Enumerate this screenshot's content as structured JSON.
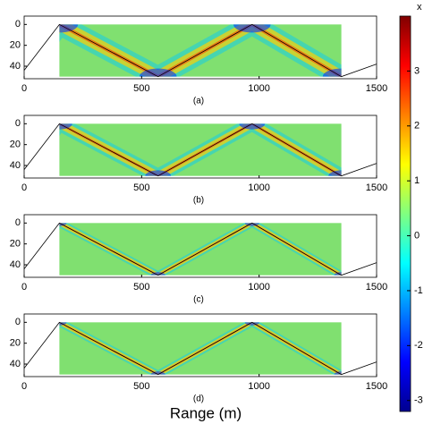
{
  "chart_data": [
    {
      "type": "heatmap",
      "label": "(a)",
      "xlim": [
        0,
        1500
      ],
      "ylim": [
        -8,
        52
      ],
      "xticks": [
        0,
        500,
        1000,
        1500
      ],
      "yticks": [
        0,
        20,
        40
      ],
      "field_x": [
        150,
        1350
      ],
      "field_y": [
        0,
        50
      ],
      "series": [
        {
          "color": "#000000",
          "x": [
            0,
            150,
            570,
            970,
            1350,
            1500
          ],
          "values": [
            44,
            0,
            50,
            0,
            50,
            38
          ]
        }
      ]
    },
    {
      "type": "heatmap",
      "label": "(b)",
      "xlim": [
        0,
        1500
      ],
      "ylim": [
        -8,
        52
      ],
      "xticks": [
        0,
        500,
        1000,
        1500
      ],
      "yticks": [
        0,
        20,
        40
      ],
      "field_x": [
        150,
        1350
      ],
      "field_y": [
        0,
        50
      ],
      "series": [
        {
          "color": "#000000",
          "x": [
            0,
            150,
            570,
            970,
            1350,
            1500
          ],
          "values": [
            44,
            0,
            50,
            0,
            50,
            38
          ]
        }
      ]
    },
    {
      "type": "heatmap",
      "label": "(c)",
      "xlim": [
        0,
        1500
      ],
      "ylim": [
        -8,
        52
      ],
      "xticks": [
        0,
        500,
        1000,
        1500
      ],
      "yticks": [
        0,
        20,
        40
      ],
      "field_x": [
        150,
        1350
      ],
      "field_y": [
        0,
        50
      ],
      "series": [
        {
          "color": "#000000",
          "x": [
            0,
            150,
            570,
            970,
            1350,
            1500
          ],
          "values": [
            44,
            0,
            50,
            0,
            50,
            38
          ]
        }
      ]
    },
    {
      "type": "heatmap",
      "label": "(d)",
      "xlim": [
        0,
        1500
      ],
      "ylim": [
        -8,
        52
      ],
      "xticks": [
        0,
        500,
        1000,
        1500
      ],
      "yticks": [
        0,
        20,
        40
      ],
      "field_x": [
        150,
        1350
      ],
      "field_y": [
        0,
        50
      ],
      "series": [
        {
          "color": "#000000",
          "x": [
            0,
            150,
            570,
            970,
            1350,
            1500
          ],
          "values": [
            44,
            0,
            50,
            0,
            50,
            38
          ]
        }
      ]
    }
  ],
  "xlabel": "Range (m)",
  "colorbar": {
    "clim": [
      -3.2,
      4
    ],
    "ticks": [
      -3,
      -2,
      -1,
      0,
      1,
      2,
      3
    ],
    "exponent_label": "x"
  }
}
